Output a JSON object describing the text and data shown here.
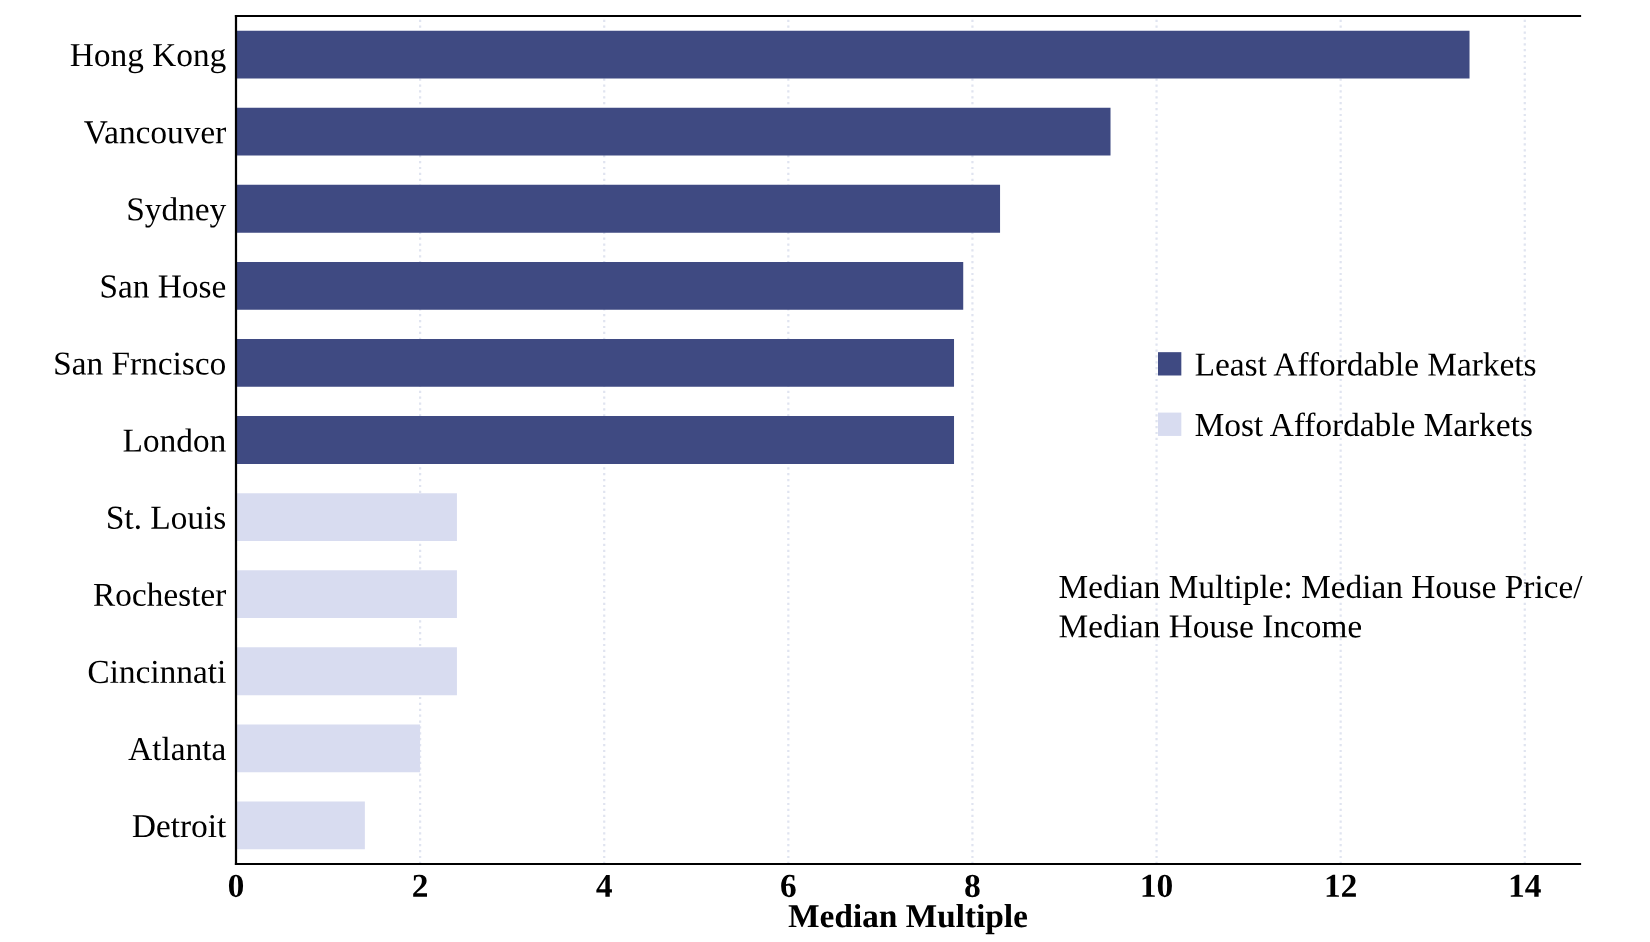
{
  "chart_data": {
    "type": "bar",
    "orientation": "horizontal",
    "xlabel": "Median Multiple",
    "categories": [
      "Hong Kong",
      "Vancouver",
      "Sydney",
      "San Hose",
      "San Frncisco",
      "London",
      "St. Louis",
      "Rochester",
      "Cincinnati",
      "Atlanta",
      "Detroit"
    ],
    "series": [
      {
        "name": "Least Affordable Markets",
        "color": "#3f4a82",
        "values": [
          13.4,
          9.5,
          8.3,
          7.9,
          7.8,
          7.8,
          null,
          null,
          null,
          null,
          null
        ]
      },
      {
        "name": "Most Affordable Markets",
        "color": "#d8dcf0",
        "values": [
          null,
          null,
          null,
          null,
          null,
          null,
          2.4,
          2.4,
          2.4,
          2.0,
          1.4
        ]
      }
    ],
    "xlim": [
      0,
      14.6
    ],
    "xticks": [
      0,
      2,
      4,
      6,
      8,
      10,
      12,
      14
    ],
    "grid": "x",
    "legend": "right",
    "annotations": [
      "Median Multiple: Median House Price/\nMedian House Income"
    ]
  }
}
